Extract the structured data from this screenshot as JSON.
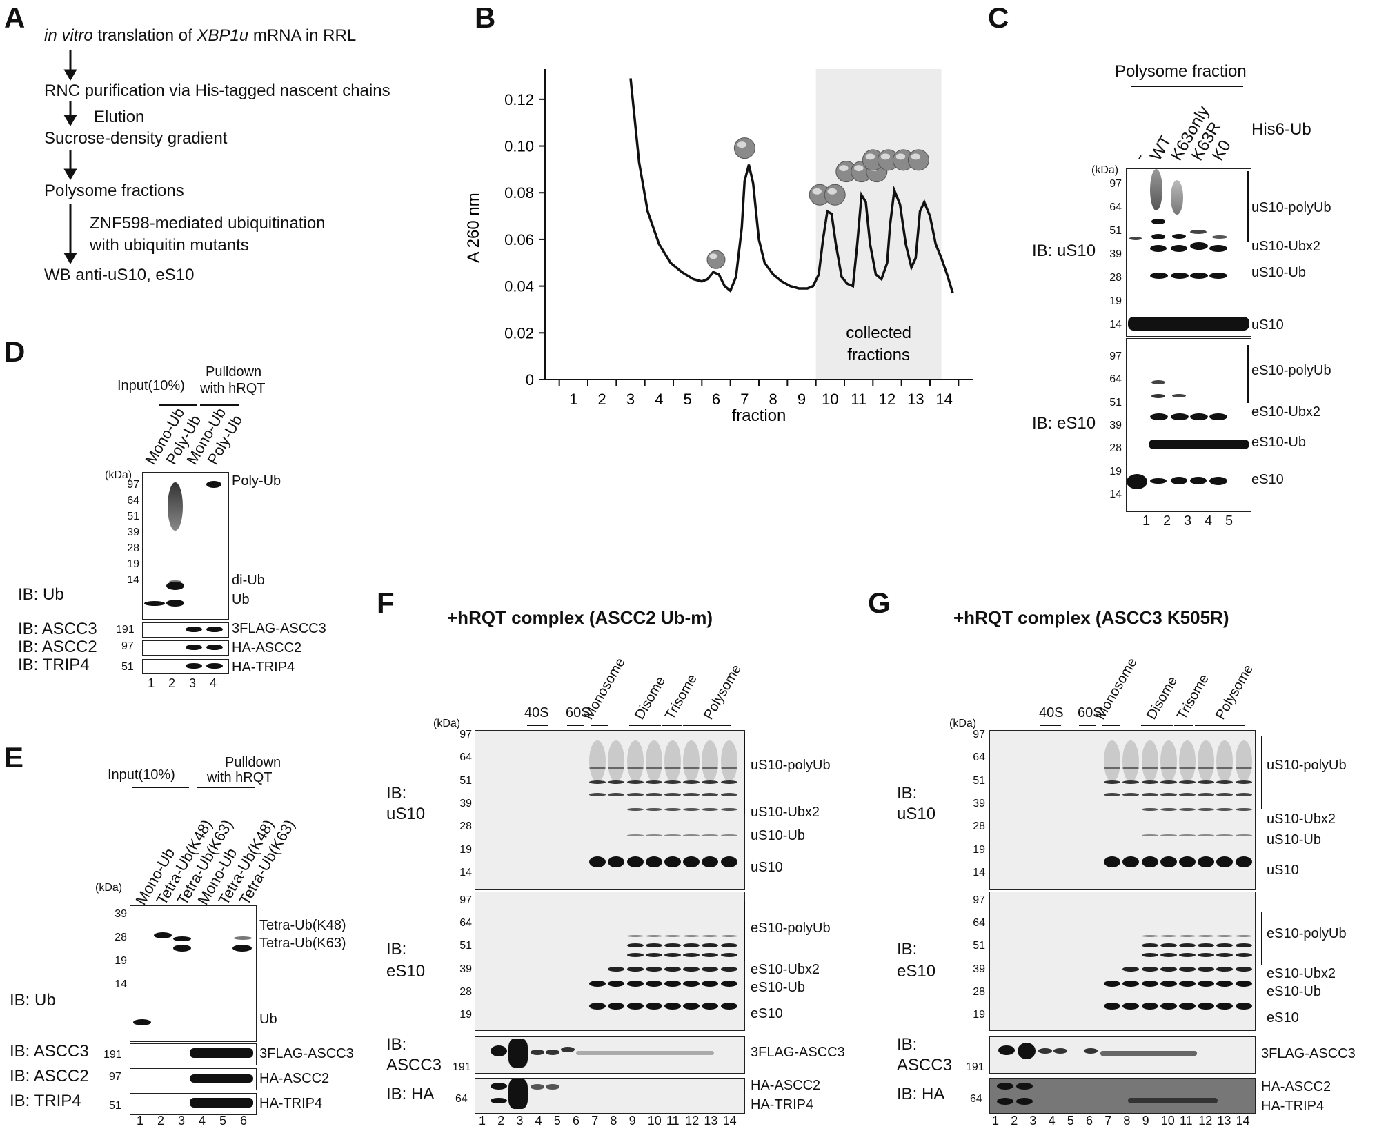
{
  "panelA": {
    "label": "A",
    "steps": [
      {
        "italic1": "in vitro",
        "text1": " translation of ",
        "italic2": "XBP1u",
        "text2": " mRNA in RRL"
      },
      {
        "text": "RNC purification via His-tagged nascent chains"
      },
      {
        "text": "Sucrose-density gradient"
      },
      {
        "text": "Polysome fractions"
      },
      {
        "text": "WB anti-uS10, eS10"
      }
    ],
    "arrow_notes": [
      "Elution",
      "ZNF598-mediated ubiquitination",
      "with ubiquitin mutants"
    ]
  },
  "panelB": {
    "label": "B",
    "shaded_label_1": "collected",
    "shaded_label_2": "fractions",
    "chart_data": {
      "type": "line",
      "title": "",
      "xlabel": "fraction",
      "ylabel": "A 260 nm",
      "ylim": [
        0,
        0.13
      ],
      "yticks": [
        "0",
        "0.02",
        "0.04",
        "0.06",
        "0.08",
        "0.10",
        "0.12"
      ],
      "xticks": [
        "1",
        "2",
        "3",
        "4",
        "5",
        "6",
        "7",
        "8",
        "9",
        "10",
        "11",
        "12",
        "13",
        "14"
      ],
      "shaded_range": [
        10,
        13.9
      ],
      "series": [
        {
          "name": "A260",
          "x": [
            3.0,
            3.3,
            3.6,
            4.0,
            4.4,
            4.8,
            5.2,
            5.5,
            5.7,
            5.9,
            6.1,
            6.3,
            6.5,
            6.7,
            6.9,
            7.0,
            7.15,
            7.3,
            7.5,
            7.7,
            8.0,
            8.3,
            8.6,
            8.9,
            9.2,
            9.4,
            9.6,
            9.75,
            9.9,
            10.05,
            10.2,
            10.4,
            10.6,
            10.8,
            10.95,
            11.1,
            11.25,
            11.4,
            11.6,
            11.8,
            12.0,
            12.1,
            12.25,
            12.45,
            12.65,
            12.85,
            13.0,
            13.15,
            13.3,
            13.5,
            13.7,
            13.9,
            14.1,
            14.3
          ],
          "y": [
            0.129,
            0.093,
            0.072,
            0.058,
            0.05,
            0.046,
            0.043,
            0.042,
            0.043,
            0.046,
            0.045,
            0.04,
            0.038,
            0.044,
            0.065,
            0.085,
            0.092,
            0.084,
            0.06,
            0.05,
            0.045,
            0.042,
            0.04,
            0.039,
            0.039,
            0.04,
            0.045,
            0.06,
            0.072,
            0.071,
            0.058,
            0.044,
            0.041,
            0.04,
            0.058,
            0.079,
            0.076,
            0.058,
            0.045,
            0.043,
            0.05,
            0.066,
            0.081,
            0.075,
            0.058,
            0.048,
            0.052,
            0.072,
            0.076,
            0.07,
            0.058,
            0.052,
            0.045,
            0.037
          ]
        }
      ]
    }
  },
  "panelC": {
    "label": "C",
    "header": "Polysome fraction",
    "construct": "His6-Ub",
    "lanes": [
      "-",
      "WT",
      "K63only",
      "K63R",
      "K0"
    ],
    "lane_numbers": [
      "1",
      "2",
      "3",
      "4",
      "5"
    ],
    "kda": "(kDa)",
    "uS10_markers": [
      "97",
      "64",
      "51",
      "39",
      "28",
      "19",
      "14"
    ],
    "eS10_markers": [
      "97",
      "64",
      "51",
      "39",
      "28",
      "19",
      "14"
    ],
    "ib_uS10": "IB: uS10",
    "ib_eS10": "IB: eS10",
    "uS10_labels": [
      "uS10-polyUb",
      "uS10-Ubx2",
      "uS10-Ub",
      "uS10"
    ],
    "eS10_labels": [
      "eS10-polyUb",
      "eS10-Ubx2",
      "eS10-Ub",
      "eS10"
    ]
  },
  "panelD": {
    "label": "D",
    "group1": "Input(10%)",
    "group2a": "Pulldown",
    "group2b": "with hRQT",
    "lanes": [
      "Mono-Ub",
      "Poly-Ub",
      "Mono-Ub",
      "Poly-Ub"
    ],
    "lane_numbers": [
      "1",
      "2",
      "3",
      "4"
    ],
    "kda": "(kDa)",
    "markers": [
      "97",
      "64",
      "51",
      "39",
      "28",
      "19",
      "14"
    ],
    "ib": [
      "IB: Ub",
      "IB: ASCC3",
      "IB: ASCC2",
      "IB: TRIP4"
    ],
    "small_markers": [
      "191",
      "97",
      "51"
    ],
    "band_labels": [
      "Poly-Ub",
      "di-Ub",
      "Ub"
    ],
    "protein_labels": [
      "3FLAG-ASCC3",
      "HA-ASCC2",
      "HA-TRIP4"
    ]
  },
  "panelE": {
    "label": "E",
    "group1": "Input(10%)",
    "group2a": "Pulldown",
    "group2b": "with hRQT",
    "lanes": [
      "Mono-Ub",
      "Tetra-Ub(K48)",
      "Tetra-Ub(K63)",
      "Mono-Ub",
      "Tetra-Ub(K48)",
      "Tetra-Ub(K63)"
    ],
    "lane_numbers": [
      "1",
      "2",
      "3",
      "4",
      "5",
      "6"
    ],
    "kda": "(kDa)",
    "markers": [
      "39",
      "28",
      "19",
      "14"
    ],
    "ib": [
      "IB: Ub",
      "IB: ASCC3",
      "IB: ASCC2",
      "IB: TRIP4"
    ],
    "small_markers": [
      "191",
      "97",
      "51"
    ],
    "band_labels": [
      "Tetra-Ub(K48)",
      "Tetra-Ub(K63)",
      "Ub"
    ],
    "protein_labels": [
      "3FLAG-ASCC3",
      "HA-ASCC2",
      "HA-TRIP4"
    ]
  },
  "panelF": {
    "label": "F",
    "title": "+hRQT complex (ASCC2 Ub-m)",
    "fractions": [
      "40S",
      "60S",
      "Monosome",
      "Disome",
      "Trisome",
      "Polysome"
    ],
    "kda": "(kDa)",
    "uS10_markers": [
      "97",
      "64",
      "51",
      "39",
      "28",
      "19",
      "14"
    ],
    "eS10_markers": [
      "97",
      "64",
      "51",
      "39",
      "28",
      "19"
    ],
    "ib_uS10": [
      "IB:",
      "uS10"
    ],
    "ib_eS10": [
      "IB:",
      "eS10"
    ],
    "ib_ascc3": [
      "IB:",
      "ASCC3"
    ],
    "ib_ha": "IB: HA",
    "m191": "191",
    "m64": "64",
    "uS10_labels": [
      "uS10-polyUb",
      "uS10-Ubx2",
      "uS10-Ub",
      "uS10"
    ],
    "eS10_labels": [
      "eS10-polyUb",
      "eS10-Ubx2",
      "eS10-Ub",
      "eS10"
    ],
    "ascc3_label": "3FLAG-ASCC3",
    "ha_labels": [
      "HA-ASCC2",
      "HA-TRIP4"
    ],
    "lane_numbers": [
      "1",
      "2",
      "3",
      "4",
      "5",
      "6",
      "7",
      "8",
      "9",
      "10",
      "11",
      "12",
      "13",
      "14"
    ]
  },
  "panelG": {
    "label": "G",
    "title": "+hRQT complex (ASCC3 K505R)",
    "fractions": [
      "40S",
      "60S",
      "Monosome",
      "Disome",
      "Trisome",
      "Polysome"
    ],
    "kda": "(kDa)",
    "uS10_markers": [
      "97",
      "64",
      "51",
      "39",
      "28",
      "19",
      "14"
    ],
    "eS10_markers": [
      "97",
      "64",
      "51",
      "39",
      "28",
      "19"
    ],
    "ib_uS10": [
      "IB:",
      "uS10"
    ],
    "ib_eS10": [
      "IB:",
      "eS10"
    ],
    "ib_ascc3": [
      "IB:",
      "ASCC3"
    ],
    "ib_ha": "IB: HA",
    "m191": "191",
    "m64": "64",
    "uS10_labels": [
      "uS10-polyUb",
      "uS10-Ubx2",
      "uS10-Ub",
      "uS10"
    ],
    "eS10_labels": [
      "eS10-polyUb",
      "eS10-Ubx2",
      "eS10-Ub",
      "eS10"
    ],
    "ascc3_label": "3FLAG-ASCC3",
    "ha_labels": [
      "HA-ASCC2",
      "HA-TRIP4"
    ],
    "lane_numbers": [
      "1",
      "2",
      "3",
      "4",
      "5",
      "6",
      "7",
      "8",
      "9",
      "10",
      "11",
      "12",
      "13",
      "14"
    ]
  }
}
